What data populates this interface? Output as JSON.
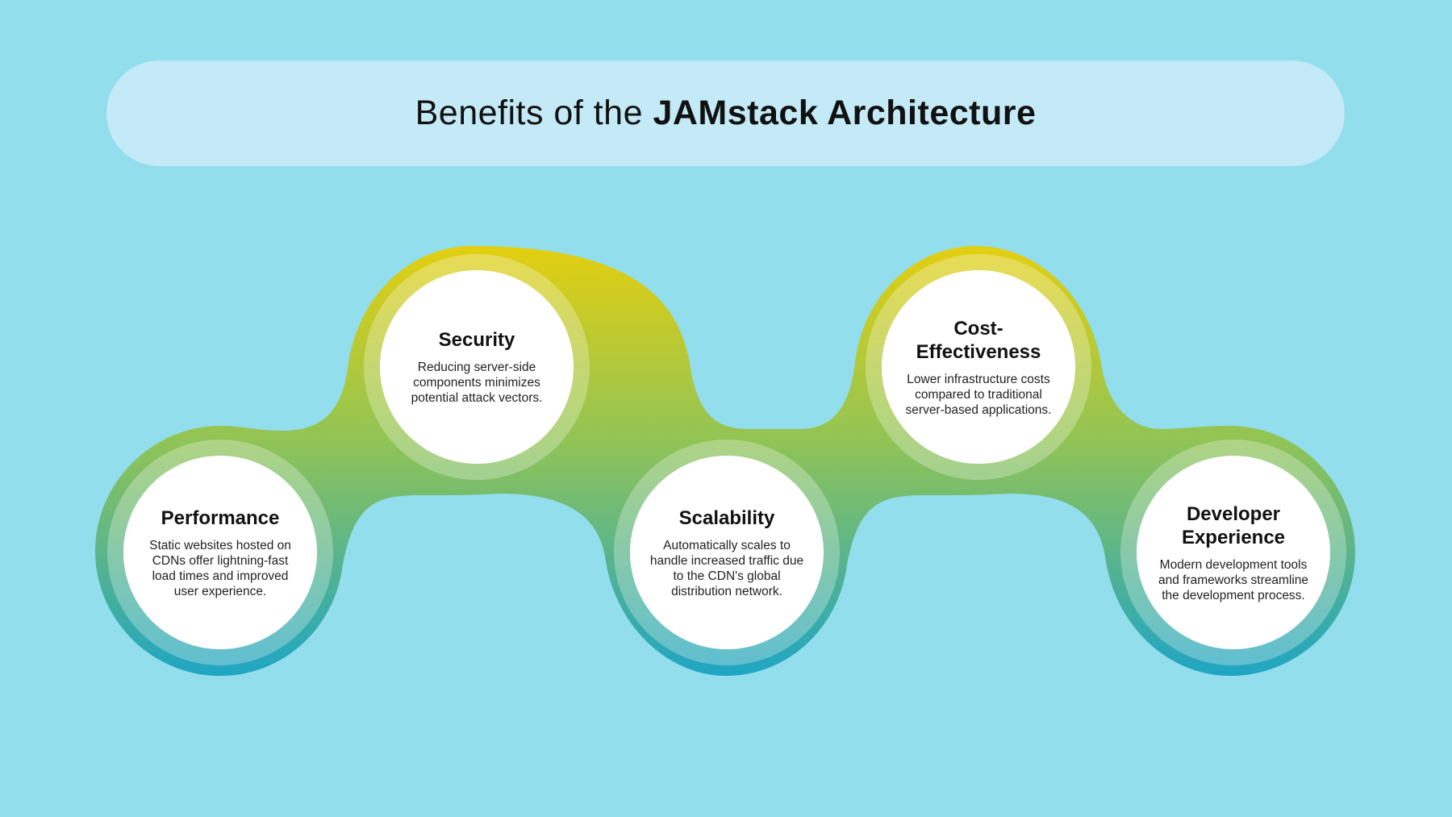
{
  "title": {
    "prefix": "Benefits of the",
    "emphasis": "JAMstack Architecture"
  },
  "colors": {
    "background": "#92deed",
    "band_top": "#e3cf10",
    "band_bottom": "#1fa5c4"
  },
  "benefits": [
    {
      "title": "Performance",
      "description": "Static websites hosted on CDNs offer lightning-fast load times and improved user experience."
    },
    {
      "title": "Security",
      "description": "Reducing server-side components minimizes potential attack vectors."
    },
    {
      "title": "Scalability",
      "description": "Automatically scales to handle increased traffic due to the CDN's global distribution network."
    },
    {
      "title": "Cost-Effectiveness",
      "description": "Lower infrastructure costs compared to traditional server-based applications."
    },
    {
      "title": "Developer Experience",
      "description": "Modern development tools and frameworks streamline the development process."
    }
  ]
}
